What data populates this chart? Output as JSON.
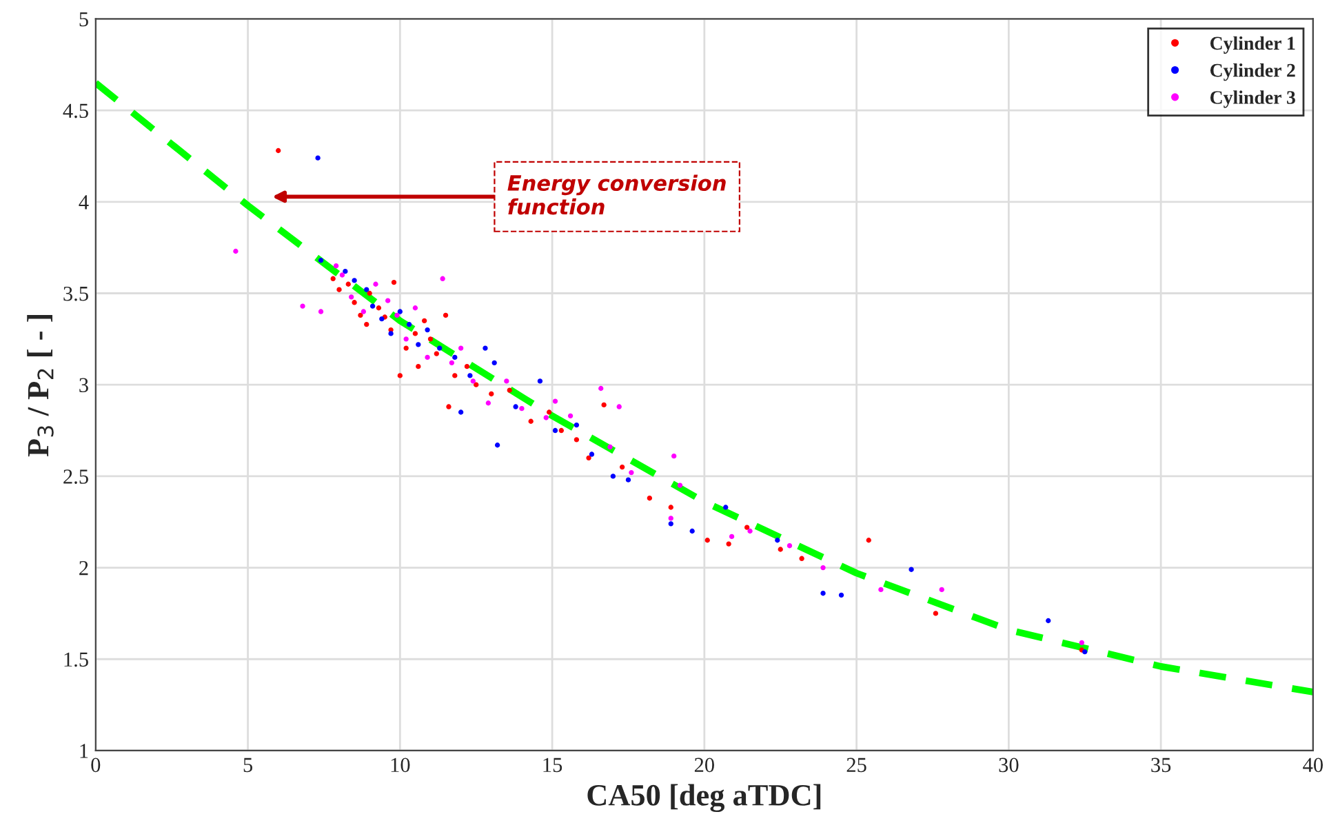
{
  "chart_data": {
    "type": "scatter",
    "xlabel": "CA50 [deg aTDC]",
    "ylabel": "P$_{3}$ / P$_{2}$ [ - ]",
    "xlim": [
      0,
      40
    ],
    "ylim": [
      1,
      5
    ],
    "xticks": [
      0,
      5,
      10,
      15,
      20,
      25,
      30,
      35,
      40
    ],
    "yticks": [
      1,
      1.5,
      2,
      2.5,
      3,
      3.5,
      4,
      4.5,
      5
    ],
    "grid": true,
    "legend": "top right",
    "marker": "circle",
    "annotations": [
      "Energy conversion\nfunction"
    ],
    "series": [
      {
        "name": "Cylinder 1",
        "color": "#ff0000",
        "x": [
          6.0,
          7.8,
          8.0,
          8.3,
          8.5,
          8.7,
          8.9,
          9.0,
          9.3,
          9.5,
          9.7,
          9.8,
          10.0,
          10.2,
          10.5,
          10.6,
          10.8,
          11.0,
          11.2,
          11.5,
          11.6,
          11.8,
          12.2,
          12.5,
          13.0,
          13.6,
          14.3,
          14.9,
          15.3,
          15.8,
          16.2,
          16.7,
          17.3,
          18.2,
          18.9,
          20.1,
          20.8,
          21.4,
          22.5,
          23.2,
          25.4,
          27.6,
          32.4
        ],
        "values": [
          4.28,
          3.58,
          3.52,
          3.55,
          3.45,
          3.38,
          3.33,
          3.5,
          3.42,
          3.37,
          3.3,
          3.56,
          3.05,
          3.2,
          3.28,
          3.1,
          3.35,
          3.25,
          3.17,
          3.38,
          2.88,
          3.05,
          3.1,
          3.0,
          2.95,
          2.97,
          2.8,
          2.85,
          2.75,
          2.7,
          2.6,
          2.89,
          2.55,
          2.38,
          2.33,
          2.15,
          2.13,
          2.22,
          2.1,
          2.05,
          2.15,
          1.75,
          1.55
        ]
      },
      {
        "name": "Cylinder 2",
        "color": "#0000ff",
        "x": [
          7.3,
          7.4,
          8.2,
          8.5,
          8.9,
          9.1,
          9.4,
          9.7,
          10.0,
          10.3,
          10.6,
          10.9,
          11.3,
          11.8,
          12.0,
          12.3,
          12.8,
          13.1,
          13.2,
          13.8,
          14.6,
          15.1,
          15.8,
          16.3,
          17.0,
          17.5,
          18.9,
          19.6,
          20.7,
          22.4,
          23.9,
          24.5,
          26.8,
          31.3,
          32.5
        ],
        "values": [
          4.24,
          3.68,
          3.62,
          3.57,
          3.52,
          3.43,
          3.36,
          3.28,
          3.4,
          3.33,
          3.22,
          3.3,
          3.2,
          3.15,
          2.85,
          3.05,
          3.2,
          3.12,
          2.67,
          2.88,
          3.02,
          2.75,
          2.78,
          2.62,
          2.5,
          2.48,
          2.24,
          2.2,
          2.33,
          2.15,
          1.86,
          1.85,
          1.99,
          1.71,
          1.54
        ]
      },
      {
        "name": "Cylinder 3",
        "color": "#ff00ff",
        "x": [
          4.6,
          6.8,
          7.4,
          7.9,
          8.1,
          8.4,
          8.8,
          9.2,
          9.6,
          9.9,
          10.2,
          10.5,
          10.9,
          11.4,
          11.7,
          12.0,
          12.4,
          12.9,
          13.5,
          14.0,
          14.8,
          15.1,
          15.6,
          16.6,
          16.9,
          17.2,
          17.6,
          18.9,
          19.0,
          19.2,
          20.9,
          21.5,
          22.8,
          23.9,
          25.8,
          27.8,
          32.4
        ],
        "values": [
          3.73,
          3.43,
          3.4,
          3.65,
          3.6,
          3.48,
          3.4,
          3.55,
          3.46,
          3.38,
          3.25,
          3.42,
          3.15,
          3.58,
          3.12,
          3.2,
          3.02,
          2.9,
          3.02,
          2.87,
          2.82,
          2.91,
          2.83,
          2.98,
          2.66,
          2.88,
          2.52,
          2.27,
          2.61,
          2.45,
          2.17,
          2.2,
          2.12,
          2.0,
          1.88,
          1.88,
          1.59
        ]
      },
      {
        "type": "line",
        "color": "#00ff00",
        "line_style": "dashed",
        "marker": "none",
        "x": [
          0,
          5,
          10,
          15,
          20,
          25,
          30,
          35,
          40
        ],
        "values": [
          4.65,
          3.98,
          3.35,
          2.83,
          2.36,
          1.97,
          1.66,
          1.46,
          1.32
        ]
      }
    ]
  }
}
